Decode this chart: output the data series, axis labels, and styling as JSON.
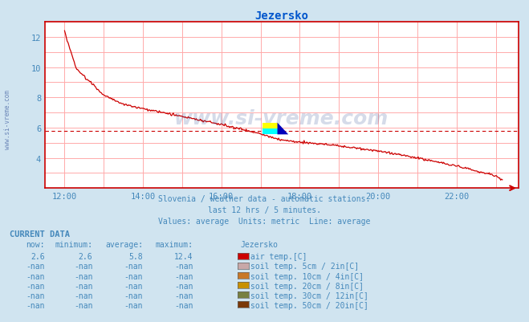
{
  "title": "Jezersko",
  "title_color": "#0055cc",
  "bg_color": "#d0e4f0",
  "plot_bg_color": "#ffffff",
  "grid_color": "#ffaaaa",
  "axis_color": "#cc0000",
  "text_color": "#4488bb",
  "subtitle_lines": [
    "Slovenia / weather data - automatic stations.",
    "last 12 hrs / 5 minutes.",
    "Values: average  Units: metric  Line: average"
  ],
  "xlim_hours": [
    11.5,
    23.58
  ],
  "ylim": [
    2.0,
    13.0
  ],
  "yticks": [
    4,
    6,
    8,
    10,
    12
  ],
  "xtick_hours": [
    12,
    14,
    16,
    18,
    20,
    22
  ],
  "xtick_labels": [
    "12:00",
    "14:00",
    "16:00",
    "18:00",
    "20:00",
    "22:00"
  ],
  "avg_line_y": 5.8,
  "line_color": "#cc0000",
  "watermark": "www.si-vreme.com",
  "watermark_color": "#1a3a8a",
  "current_data_label": "CURRENT DATA",
  "col_headers": [
    "now:",
    "minimum:",
    "average:",
    "maximum:",
    "Jezersko"
  ],
  "rows": [
    {
      "now": "2.6",
      "min": "2.6",
      "avg": "5.8",
      "max": "12.4",
      "color": "#cc0000",
      "label": "air temp.[C]"
    },
    {
      "now": "-nan",
      "min": "-nan",
      "avg": "-nan",
      "max": "-nan",
      "color": "#c8a8a8",
      "label": "soil temp. 5cm / 2in[C]"
    },
    {
      "now": "-nan",
      "min": "-nan",
      "avg": "-nan",
      "max": "-nan",
      "color": "#c87828",
      "label": "soil temp. 10cm / 4in[C]"
    },
    {
      "now": "-nan",
      "min": "-nan",
      "avg": "-nan",
      "max": "-nan",
      "color": "#c89000",
      "label": "soil temp. 20cm / 8in[C]"
    },
    {
      "now": "-nan",
      "min": "-nan",
      "avg": "-nan",
      "max": "-nan",
      "color": "#788040",
      "label": "soil temp. 30cm / 12in[C]"
    },
    {
      "now": "-nan",
      "min": "-nan",
      "avg": "-nan",
      "max": "-nan",
      "color": "#7a3808",
      "label": "soil temp. 50cm / 20in[C]"
    }
  ]
}
